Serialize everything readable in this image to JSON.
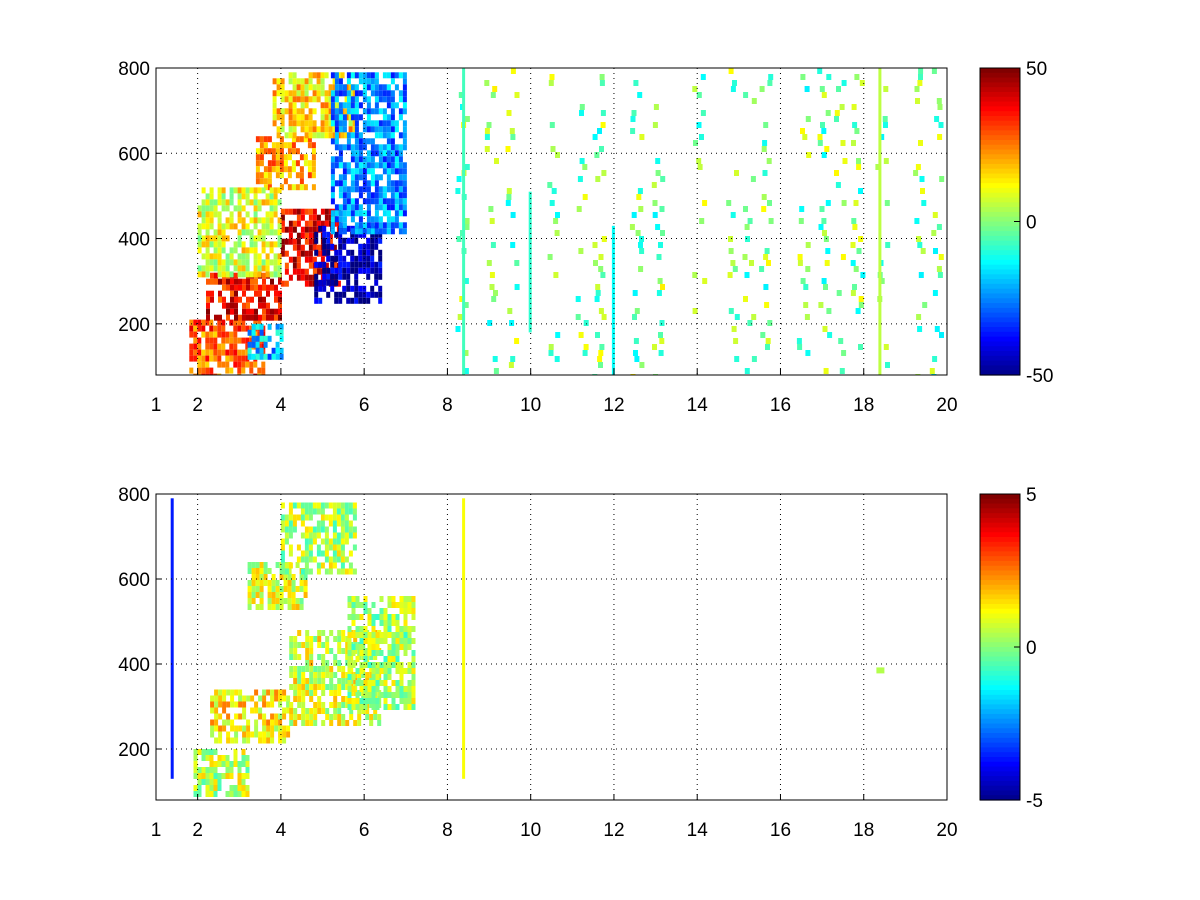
{
  "chart_data": [
    {
      "type": "heatmap",
      "title": "",
      "xlabel": "",
      "ylabel": "",
      "xlim": [
        1,
        20
      ],
      "ylim": [
        80,
        800
      ],
      "grid": true,
      "x_tick_labels": [
        "1",
        "2",
        "4",
        "6",
        "8",
        "10",
        "12",
        "14",
        "16",
        "18",
        "20"
      ],
      "x_tick_values": [
        1,
        2,
        4,
        6,
        8,
        10,
        12,
        14,
        16,
        18,
        20
      ],
      "y_tick_labels": [
        "200",
        "400",
        "600",
        "800"
      ],
      "y_tick_values": [
        200,
        400,
        600,
        800
      ],
      "colorbar": {
        "colormap": "jet",
        "min": -50,
        "max": 50,
        "tick_labels": [
          "50",
          "0",
          "-50"
        ],
        "tick_values": [
          50,
          0,
          -50
        ]
      },
      "blobs": [
        {
          "x": [
            1.8,
            3.6
          ],
          "y": [
            80,
            210
          ],
          "value": 28
        },
        {
          "x": [
            2.2,
            4.0
          ],
          "y": [
            220,
            320
          ],
          "value": 38
        },
        {
          "x": [
            3.4,
            4.8
          ],
          "y": [
            520,
            640
          ],
          "value": 22
        },
        {
          "x": [
            3.8,
            5.8
          ],
          "y": [
            640,
            790
          ],
          "value": 16
        },
        {
          "x": [
            4.0,
            5.4
          ],
          "y": [
            300,
            470
          ],
          "value": 40
        },
        {
          "x": [
            4.8,
            6.4
          ],
          "y": [
            250,
            430
          ],
          "value": -46
        },
        {
          "x": [
            5.2,
            7.0
          ],
          "y": [
            420,
            790
          ],
          "value": -24
        },
        {
          "x": [
            2.0,
            4.0
          ],
          "y": [
            320,
            520
          ],
          "value": 10
        },
        {
          "x": [
            3.2,
            4.0
          ],
          "y": [
            120,
            200
          ],
          "value": -20
        }
      ],
      "stripes": [
        {
          "x": 10.0,
          "y": [
            180,
            510
          ],
          "value": -8
        },
        {
          "x": 12.0,
          "y": [
            80,
            430
          ],
          "value": -12
        },
        {
          "x": 8.4,
          "y": [
            80,
            800
          ],
          "value": -6
        },
        {
          "x": 18.4,
          "y": [
            80,
            800
          ],
          "value": 6
        }
      ],
      "scatter_columns": [
        8.3,
        9.0,
        9.5,
        10.5,
        11.2,
        11.6,
        12.5,
        13.0,
        14.0,
        14.8,
        15.2,
        15.6,
        16.5,
        17.0,
        17.4,
        17.8,
        18.4,
        19.3,
        19.7
      ]
    },
    {
      "type": "heatmap",
      "title": "",
      "xlabel": "",
      "ylabel": "",
      "xlim": [
        1,
        20
      ],
      "ylim": [
        80,
        800
      ],
      "grid": true,
      "x_tick_labels": [
        "1",
        "2",
        "4",
        "6",
        "8",
        "10",
        "12",
        "14",
        "16",
        "18",
        "20"
      ],
      "x_tick_values": [
        1,
        2,
        4,
        6,
        8,
        10,
        12,
        14,
        16,
        18,
        20
      ],
      "y_tick_labels": [
        "200",
        "400",
        "600",
        "800"
      ],
      "y_tick_values": [
        200,
        400,
        600,
        800
      ],
      "colorbar": {
        "colormap": "jet",
        "min": -5,
        "max": 5,
        "tick_labels": [
          "5",
          "0",
          "-5"
        ],
        "tick_values": [
          5,
          0,
          -5
        ]
      },
      "blobs": [
        {
          "x": [
            1.9,
            3.2
          ],
          "y": [
            90,
            200
          ],
          "value": 0.6
        },
        {
          "x": [
            2.3,
            4.2
          ],
          "y": [
            220,
            340
          ],
          "value": 1.4
        },
        {
          "x": [
            3.2,
            4.6
          ],
          "y": [
            540,
            640
          ],
          "value": 0.8
        },
        {
          "x": [
            4.0,
            5.8
          ],
          "y": [
            620,
            780
          ],
          "value": 0.5
        },
        {
          "x": [
            4.2,
            6.4
          ],
          "y": [
            260,
            480
          ],
          "value": 0.9
        },
        {
          "x": [
            5.6,
            7.2
          ],
          "y": [
            300,
            560
          ],
          "value": 0.4
        }
      ],
      "stripes": [
        {
          "x": 1.4,
          "y": [
            130,
            790
          ],
          "value": -3.5
        },
        {
          "x": 8.4,
          "y": [
            130,
            790
          ],
          "value": 1.2
        }
      ],
      "isolated_points": [
        {
          "x": 18.4,
          "y": 385,
          "value": 0.5
        }
      ]
    }
  ]
}
